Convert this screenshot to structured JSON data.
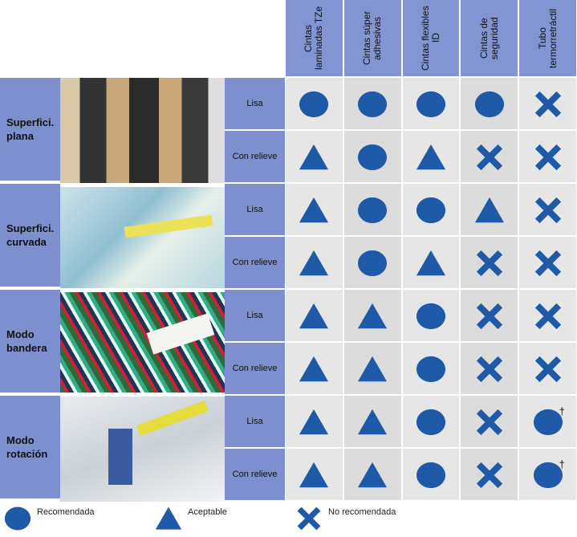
{
  "columns": [
    "Cintas laminadas TZe",
    "Cintas súper adhesivas",
    "Cintas flexibles ID",
    "Cintas de seguridad",
    "Tubo termorretráctil"
  ],
  "groups": [
    {
      "label": "Superfici. plana",
      "rows": [
        {
          "surface": "Lisa",
          "cells": [
            "recommended",
            "recommended",
            "recommended",
            "recommended",
            "not_recommended"
          ]
        },
        {
          "surface": "Con relieve",
          "cells": [
            "acceptable",
            "recommended",
            "acceptable",
            "not_recommended",
            "not_recommended"
          ]
        }
      ]
    },
    {
      "label": "Superfici. curvada",
      "rows": [
        {
          "surface": "Lisa",
          "cells": [
            "acceptable",
            "recommended",
            "recommended",
            "acceptable",
            "not_recommended"
          ]
        },
        {
          "surface": "Con relieve",
          "cells": [
            "acceptable",
            "recommended",
            "acceptable",
            "not_recommended",
            "not_recommended"
          ]
        }
      ]
    },
    {
      "label": "Modo bandera",
      "rows": [
        {
          "surface": "Lisa",
          "cells": [
            "acceptable",
            "acceptable",
            "recommended",
            "not_recommended",
            "not_recommended"
          ]
        },
        {
          "surface": "Con relieve",
          "cells": [
            "acceptable",
            "acceptable",
            "recommended",
            "not_recommended",
            "not_recommended"
          ]
        }
      ]
    },
    {
      "label": "Modo rotación",
      "rows": [
        {
          "surface": "Lisa",
          "cells": [
            "acceptable",
            "acceptable",
            "recommended",
            "not_recommended",
            {
              "symbol": "recommended",
              "note": "†"
            }
          ]
        },
        {
          "surface": "Con relieve",
          "cells": [
            "acceptable",
            "acceptable",
            "recommended",
            "not_recommended",
            {
              "symbol": "recommended",
              "note": "†"
            }
          ]
        }
      ]
    }
  ],
  "legend": [
    {
      "symbol": "recommended",
      "label": "Recomendada"
    },
    {
      "symbol": "acceptable",
      "label": "Aceptable"
    },
    {
      "symbol": "not_recommended",
      "label": "No recomendada"
    }
  ]
}
